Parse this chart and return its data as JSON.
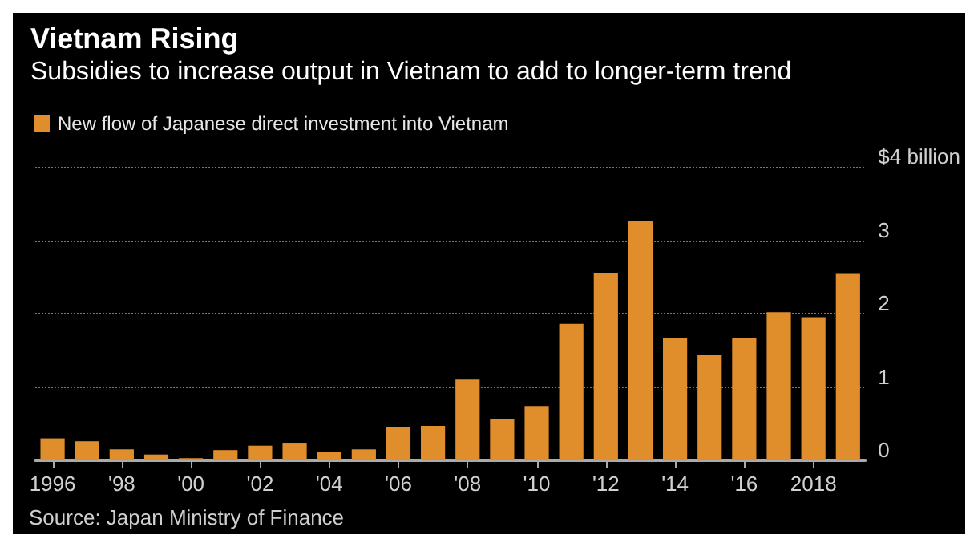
{
  "chart_data": {
    "type": "bar",
    "title": "Vietnam Rising",
    "subtitle": "Subsidies to increase output in Vietnam to add to longer-term trend",
    "categories": [
      "1996",
      null,
      "'98",
      null,
      "'00",
      null,
      "'02",
      null,
      "'04",
      null,
      "'06",
      null,
      "'08",
      null,
      "'10",
      null,
      "'12",
      null,
      "'14",
      null,
      "'16",
      null,
      "2018",
      null
    ],
    "series": [
      {
        "name": "New flow of Japanese direct investment into Vietnam",
        "color": "#e08e2b",
        "values": [
          0.3,
          0.26,
          0.15,
          0.08,
          0.03,
          0.14,
          0.2,
          0.24,
          0.12,
          0.15,
          0.45,
          0.47,
          1.1,
          0.56,
          0.74,
          1.86,
          2.55,
          3.26,
          1.66,
          1.44,
          1.66,
          2.02,
          1.95,
          2.54
        ]
      }
    ],
    "ylim": [
      0,
      4
    ],
    "yticks": [
      0,
      1,
      2,
      3,
      {
        "value": 4,
        "label": "$4 billion"
      }
    ],
    "grid": "y",
    "legend": "top left",
    "annotations": [
      "Source: Japan Ministry of Finance"
    ]
  }
}
